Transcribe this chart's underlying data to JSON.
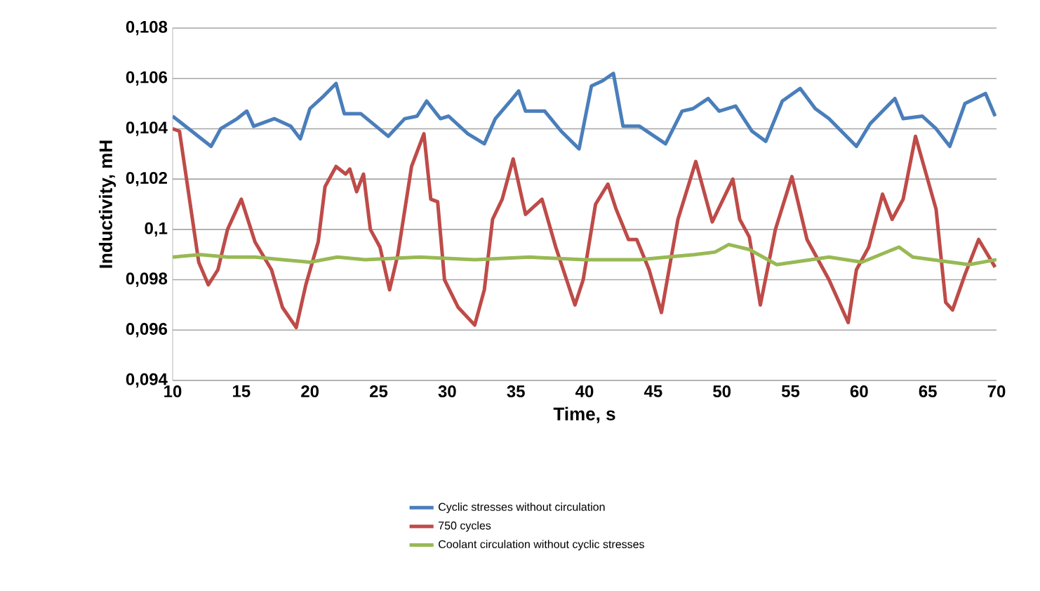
{
  "chart_data": {
    "type": "line",
    "xlabel": "Time, s",
    "ylabel": "Inductivity, mH",
    "xlim": [
      10,
      70
    ],
    "xticks": [
      10,
      15,
      20,
      25,
      30,
      35,
      40,
      45,
      50,
      55,
      60,
      65,
      70
    ],
    "ylim": [
      0.094,
      0.108
    ],
    "yticks": [
      {
        "value": 0.094,
        "label": "0,094"
      },
      {
        "value": 0.096,
        "label": "0,096"
      },
      {
        "value": 0.098,
        "label": "0,098"
      },
      {
        "value": 0.1,
        "label": "0,1"
      },
      {
        "value": 0.102,
        "label": "0,102"
      },
      {
        "value": 0.104,
        "label": "0,104"
      },
      {
        "value": 0.106,
        "label": "0,106"
      },
      {
        "value": 0.108,
        "label": "0,108"
      }
    ],
    "grid": "y",
    "legend": "bottom",
    "marker": "none",
    "line_style": "solid",
    "series": [
      {
        "name": "Cyclic stresses without circulation",
        "color": "#4a7ebb",
        "x": [
          10,
          12.8,
          13.5,
          14.7,
          15.4,
          15.9,
          17.4,
          18.6,
          19.3,
          20,
          21,
          21.9,
          22.5,
          23.7,
          25.7,
          26.9,
          27.8,
          28.5,
          29.5,
          30.1,
          31.5,
          32.7,
          33.5,
          34.6,
          35.2,
          35.7,
          37.1,
          38.3,
          39.6,
          40.5,
          41.3,
          42.1,
          42.8,
          44,
          45.9,
          47.1,
          47.9,
          49,
          49.8,
          51,
          52.2,
          53.2,
          54.4,
          55.7,
          56.8,
          57.8,
          59.8,
          60.8,
          62.6,
          63.2,
          64.6,
          65.6,
          66.6,
          67.7,
          69.2,
          69.9
        ],
        "values": [
          0.1045,
          0.1033,
          0.104,
          0.1044,
          0.1047,
          0.1041,
          0.1044,
          0.1041,
          0.1036,
          0.1048,
          0.1053,
          0.1058,
          0.1046,
          0.1046,
          0.1037,
          0.1044,
          0.1045,
          0.1051,
          0.1044,
          0.1045,
          0.1038,
          0.1034,
          0.1044,
          0.1051,
          0.1055,
          0.1047,
          0.1047,
          0.1039,
          0.1032,
          0.1057,
          0.1059,
          0.1062,
          0.1041,
          0.1041,
          0.1034,
          0.1047,
          0.1048,
          0.1052,
          0.1047,
          0.1049,
          0.1039,
          0.1035,
          0.1051,
          0.1056,
          0.1048,
          0.1044,
          0.1033,
          0.1042,
          0.1052,
          0.1044,
          0.1045,
          0.104,
          0.1033,
          0.105,
          0.1054,
          0.1045
        ]
      },
      {
        "name": "750 cycles",
        "color": "#be4b48",
        "x": [
          10,
          10.5,
          11.9,
          12.6,
          13.3,
          14,
          15,
          16,
          17.2,
          18,
          19,
          19.7,
          20.6,
          21.1,
          21.9,
          22.6,
          22.9,
          23.4,
          23.9,
          24.4,
          25.1,
          25.8,
          26.4,
          27.4,
          28.3,
          28.8,
          29.3,
          29.8,
          30.8,
          32,
          32.7,
          33.3,
          34,
          34.8,
          35.7,
          36.9,
          37.9,
          39.3,
          39.9,
          40.8,
          41.7,
          42.3,
          43.2,
          43.8,
          44.7,
          45.6,
          46.8,
          48.1,
          49.3,
          50.8,
          51.3,
          52,
          52.8,
          53.9,
          55.1,
          56.2,
          57.8,
          59.2,
          59.8,
          60.7,
          61.7,
          62.4,
          63.2,
          64.1,
          65.6,
          66.3,
          66.8,
          67.7,
          68.7,
          69.9
        ],
        "values": [
          0.104,
          0.1039,
          0.0987,
          0.0978,
          0.0984,
          0.1,
          0.1012,
          0.0995,
          0.0984,
          0.0969,
          0.0961,
          0.0978,
          0.0995,
          0.1017,
          0.1025,
          0.1022,
          0.1024,
          0.1015,
          0.1022,
          0.1,
          0.0993,
          0.0976,
          0.099,
          0.1025,
          0.1038,
          0.1012,
          0.1011,
          0.098,
          0.0969,
          0.0962,
          0.0976,
          0.1004,
          0.1012,
          0.1028,
          0.1006,
          0.1012,
          0.0993,
          0.097,
          0.098,
          0.101,
          0.1018,
          0.1008,
          0.0996,
          0.0996,
          0.0984,
          0.0967,
          0.1004,
          0.1027,
          0.1003,
          0.102,
          0.1004,
          0.0997,
          0.097,
          0.1,
          0.1021,
          0.0996,
          0.098,
          0.0963,
          0.0984,
          0.0993,
          0.1014,
          0.1004,
          0.1012,
          0.1037,
          0.1008,
          0.0971,
          0.0968,
          0.0982,
          0.0996,
          0.0985
        ]
      },
      {
        "name": "Coolant circulation without cyclic stresses",
        "color": "#98b954",
        "x": [
          10,
          12,
          14,
          16,
          18,
          20,
          22,
          24,
          28,
          32,
          36,
          40,
          44,
          46,
          48,
          49.5,
          50.5,
          52,
          54,
          57.8,
          60.2,
          62.9,
          63.9,
          68,
          70
        ],
        "values": [
          0.0989,
          0.099,
          0.0989,
          0.0989,
          0.0988,
          0.0987,
          0.0989,
          0.0988,
          0.0989,
          0.0988,
          0.0989,
          0.0988,
          0.0988,
          0.0989,
          0.099,
          0.0991,
          0.0994,
          0.0992,
          0.0986,
          0.0989,
          0.0987,
          0.0993,
          0.0989,
          0.0986,
          0.0988
        ]
      }
    ]
  }
}
